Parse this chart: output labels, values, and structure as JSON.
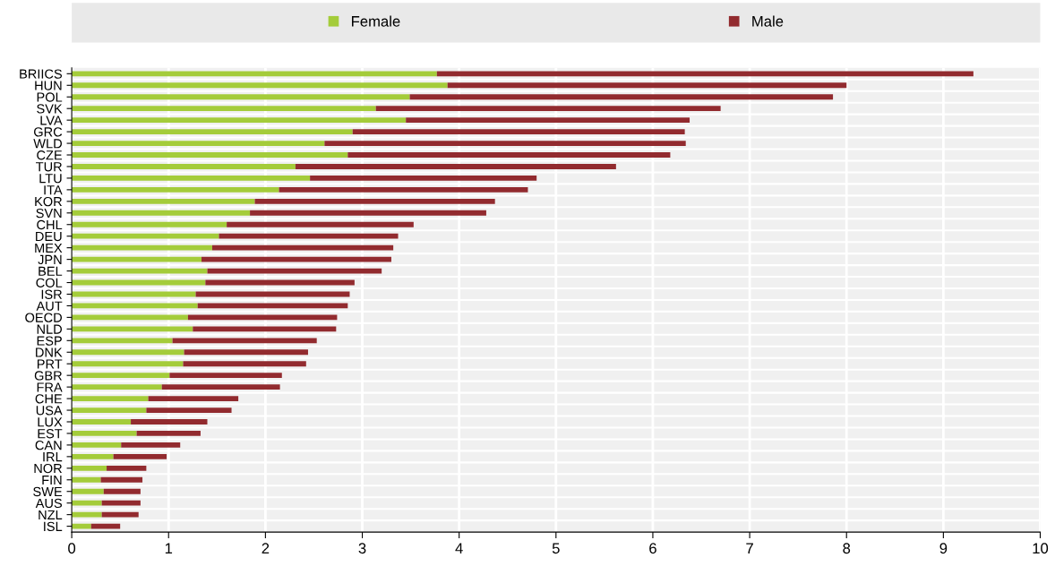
{
  "chart_data": {
    "type": "bar",
    "orientation": "horizontal",
    "stacked": true,
    "categories": [
      "BRIICS",
      "HUN",
      "POL",
      "SVK",
      "LVA",
      "GRC",
      "WLD",
      "CZE",
      "TUR",
      "LTU",
      "ITA",
      "KOR",
      "SVN",
      "CHL",
      "DEU",
      "MEX",
      "JPN",
      "BEL",
      "COL",
      "ISR",
      "AUT",
      "OECD",
      "NLD",
      "ESP",
      "DNK",
      "PRT",
      "GBR",
      "FRA",
      "CHE",
      "USA",
      "LUX",
      "EST",
      "CAN",
      "IRL",
      "NOR",
      "FIN",
      "SWE",
      "AUS",
      "NZL",
      "ISL"
    ],
    "series": [
      {
        "name": "Female",
        "color": "#a4cc3a",
        "values": [
          3.77,
          3.88,
          3.49,
          3.14,
          3.45,
          2.9,
          2.61,
          2.85,
          2.31,
          2.46,
          2.14,
          1.89,
          1.84,
          1.6,
          1.52,
          1.45,
          1.34,
          1.4,
          1.38,
          1.28,
          1.3,
          1.2,
          1.25,
          1.04,
          1.16,
          1.15,
          1.01,
          0.93,
          0.79,
          0.77,
          0.61,
          0.67,
          0.51,
          0.43,
          0.36,
          0.3,
          0.33,
          0.31,
          0.31,
          0.2
        ]
      },
      {
        "name": "Male",
        "color": "#922b2f",
        "values": [
          5.54,
          4.12,
          4.37,
          3.56,
          2.93,
          3.43,
          3.73,
          3.33,
          3.31,
          2.34,
          2.57,
          2.48,
          2.44,
          1.93,
          1.85,
          1.87,
          1.96,
          1.8,
          1.54,
          1.59,
          1.55,
          1.54,
          1.48,
          1.49,
          1.28,
          1.27,
          1.16,
          1.22,
          0.93,
          0.88,
          0.79,
          0.66,
          0.61,
          0.55,
          0.41,
          0.43,
          0.38,
          0.4,
          0.38,
          0.3
        ]
      }
    ],
    "xlim": [
      0,
      10
    ],
    "xticks": [
      0,
      1,
      2,
      3,
      4,
      5,
      6,
      7,
      8,
      9,
      10
    ],
    "grid": "x",
    "legend": "top"
  }
}
